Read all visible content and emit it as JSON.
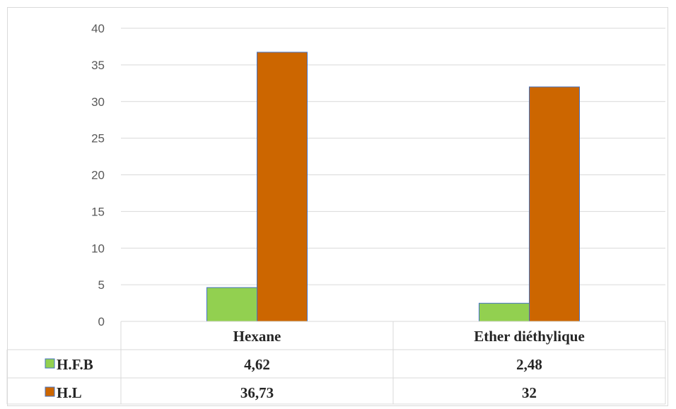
{
  "chart_data": {
    "type": "bar",
    "categories": [
      "Hexane",
      "Ether diéthylique"
    ],
    "series": [
      {
        "name": "H.F.B",
        "values": [
          4.62,
          2.48
        ],
        "labels": [
          "4,62",
          "2,48"
        ],
        "color": "#92d050"
      },
      {
        "name": "H.L",
        "values": [
          36.73,
          32
        ],
        "labels": [
          "36,73",
          "32"
        ],
        "color": "#cc6600"
      }
    ],
    "ylim": [
      0,
      40
    ],
    "yticks": [
      0,
      5,
      10,
      15,
      20,
      25,
      30,
      35,
      40
    ],
    "grid": true,
    "legend": "data-table",
    "bar_border_color": "#4472c4",
    "gridline_color": "#d9d9d9"
  }
}
